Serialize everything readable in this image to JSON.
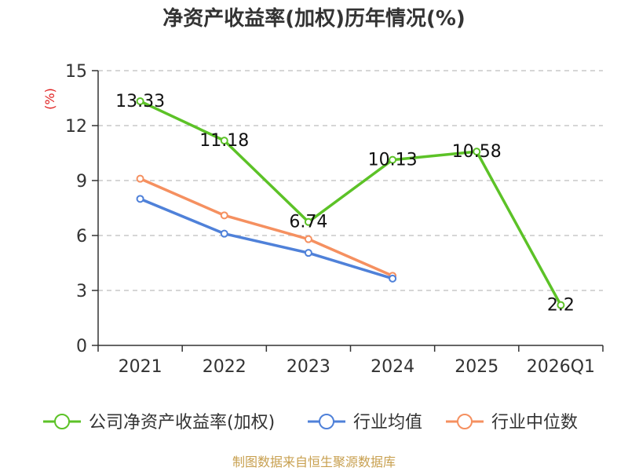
{
  "chart_data": {
    "type": "line",
    "title": "净资产收益率(加权)历年情况(%)",
    "ylabel": "(%)",
    "xlabel": "",
    "categories": [
      "2021",
      "2022",
      "2023",
      "2024",
      "2025",
      "2026Q1"
    ],
    "ylim": [
      0,
      15
    ],
    "yticks": [
      0,
      3,
      6,
      9,
      12,
      15
    ],
    "grid": true,
    "legend_position": "bottom",
    "series": [
      {
        "name": "公司净资产收益率(加权)",
        "color": "#5cc227",
        "values": [
          13.33,
          11.18,
          6.74,
          10.13,
          10.58,
          2.2
        ],
        "labels": [
          "13.33",
          "11.18",
          "6.74",
          "10.13",
          "10.58",
          "2.2"
        ]
      },
      {
        "name": "行业均值",
        "color": "#4f81d9",
        "values": [
          8.0,
          6.1,
          5.05,
          3.65,
          null,
          null
        ]
      },
      {
        "name": "行业中位数",
        "color": "#f59060",
        "values": [
          9.1,
          7.1,
          5.8,
          3.8,
          null,
          null
        ]
      }
    ],
    "source": "制图数据来自恒生聚源数据库"
  }
}
